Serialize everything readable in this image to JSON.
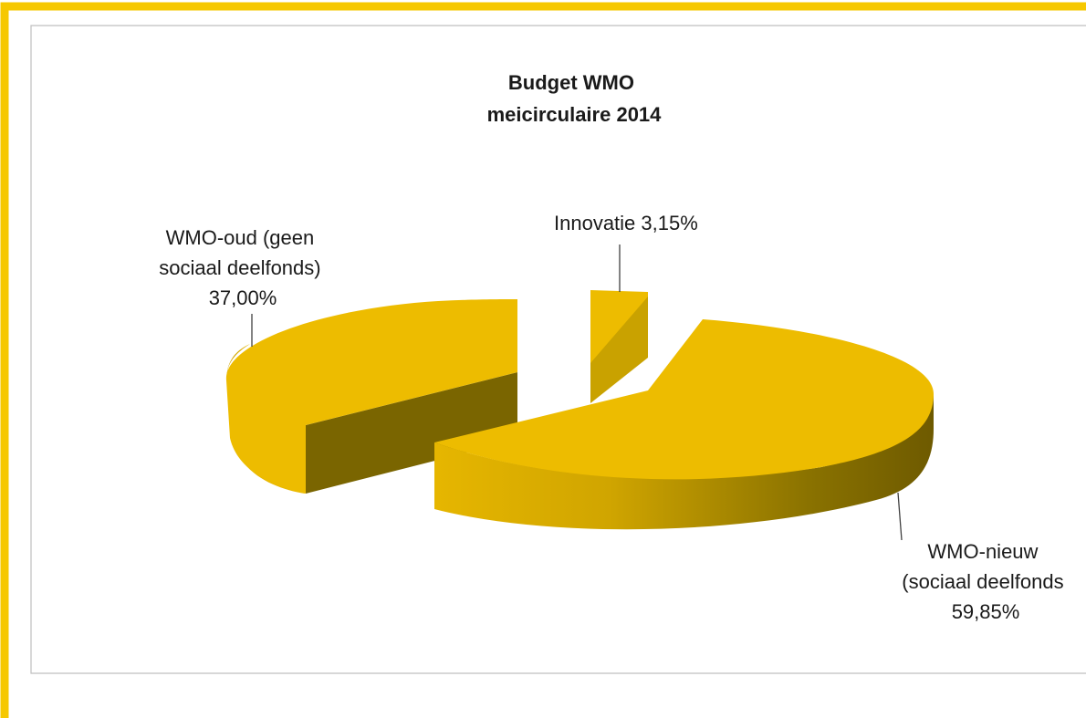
{
  "colors": {
    "frame": "#F6C800",
    "plot_border": "#BFBFBF",
    "slice_top": "#EDBC00",
    "slice_side_light": "#E2B300",
    "slice_side_dark": "#7A6500",
    "leader": "#404040"
  },
  "chart_data": {
    "type": "pie",
    "subtype": "3d-exploded",
    "title_lines": [
      "Budget WMO",
      "meicirculaire 2014"
    ],
    "slices": [
      {
        "key": "innovatie",
        "label_lines": [
          "Innovatie 3,15%"
        ],
        "value": 3.15
      },
      {
        "key": "wmo-nieuw",
        "label_lines": [
          "WMO-nieuw",
          "(sociaal deelfonds",
          "59,85%"
        ],
        "value": 59.85
      },
      {
        "key": "wmo-oud",
        "label_lines": [
          "WMO-oud (geen",
          "sociaal deelfonds)",
          "37,00%"
        ],
        "value": 37.0
      }
    ],
    "legend": "none",
    "data_labels": "outside-with-leader-lines"
  }
}
